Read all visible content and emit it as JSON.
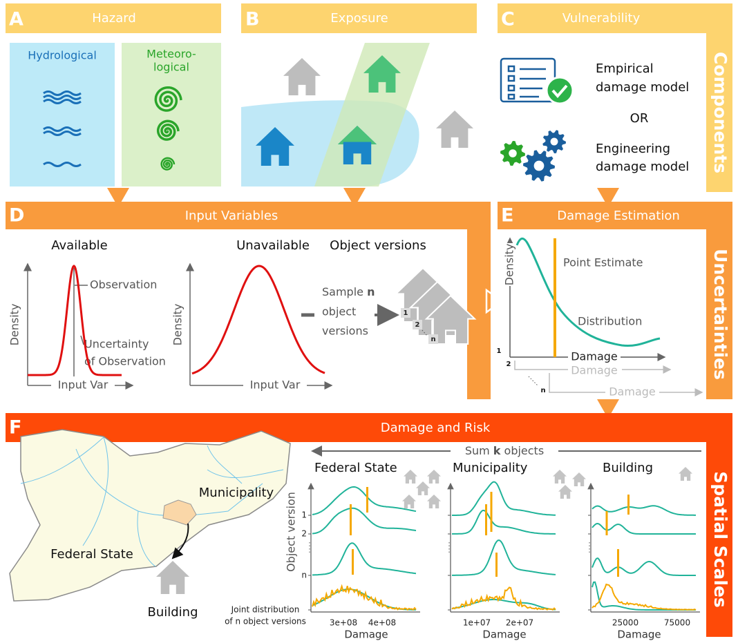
{
  "panels": {
    "A": {
      "letter": "A",
      "title": "Hazard",
      "hydrological": "Hydrological",
      "meteorological": [
        "Meteoro-",
        "logical"
      ]
    },
    "B": {
      "letter": "B",
      "title": "Exposure"
    },
    "C": {
      "letter": "C",
      "title": "Vulnerability",
      "empirical": [
        "Empirical",
        "damage model"
      ],
      "or": "OR",
      "engineering": [
        "Engineering",
        "damage model"
      ]
    },
    "D": {
      "letter": "D",
      "title": "Input Variables",
      "available": "Available",
      "unavailable": "Unavailable",
      "object_versions": "Object versions",
      "observation": "Observation",
      "uncertainty": [
        "Uncertainty",
        "of Observation"
      ],
      "y_label": "Density",
      "x_label": "Input Var",
      "sample": [
        "Sample ",
        "n"
      ],
      "sample_rest": [
        "object",
        "versions"
      ],
      "version_numbers": [
        "1",
        "2",
        "n"
      ]
    },
    "E": {
      "letter": "E",
      "title": "Damage Estimation",
      "point_estimate": "Point Estimate",
      "distribution": "Distribution",
      "y_label": "Density",
      "x_label": "Damage",
      "version_numbers": [
        "1",
        "2",
        "n"
      ]
    },
    "F": {
      "letter": "F",
      "title": "Damage and Risk",
      "sum": [
        "Sum ",
        "k",
        " objects"
      ],
      "map_labels": {
        "municipality": "Municipality",
        "federal_state": "Federal State",
        "building": "Building"
      },
      "scales": [
        "Federal State",
        "Municipality",
        "Building"
      ],
      "y_label": "Object version",
      "version_ticks": [
        "1",
        "2",
        "n"
      ],
      "joint": [
        "Joint distribution",
        "of n object versions"
      ],
      "x_label": "Damage",
      "x_ticks": [
        [
          "3e+08",
          "4e+08"
        ],
        [
          "1e+07",
          "2e+07"
        ],
        [
          "25000",
          "75000"
        ]
      ]
    }
  },
  "side_labels": [
    "Components",
    "Uncertainties",
    "Spatial Scales"
  ]
}
